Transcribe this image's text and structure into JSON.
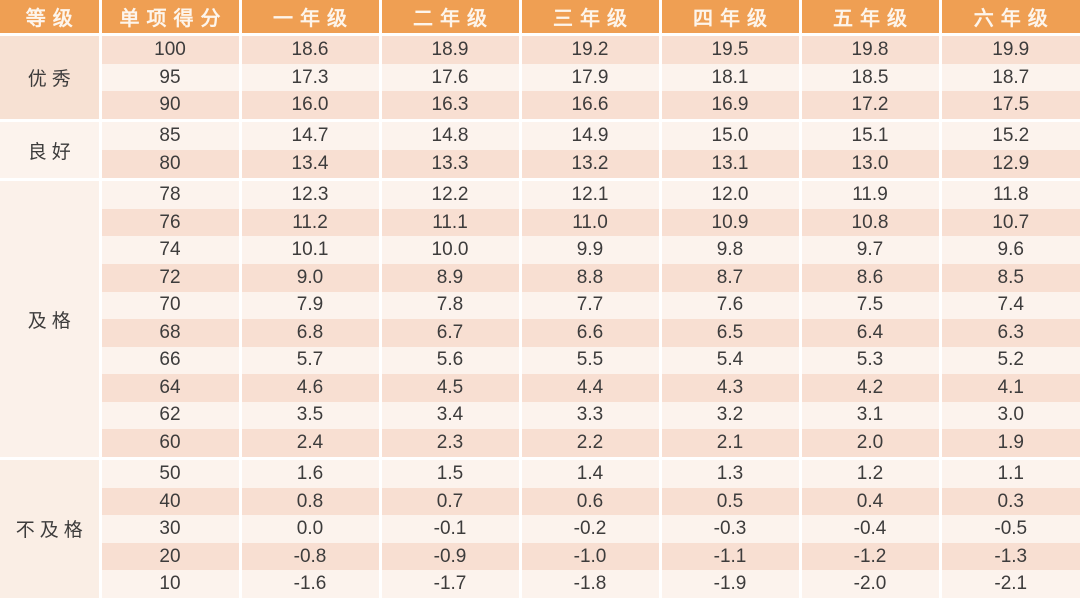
{
  "colors": {
    "header_bg": "#EF9F53",
    "header_text": "#FDF5EC",
    "row_pink": "#F8DFD2",
    "row_light": "#FCF3ED",
    "group0_bg": "#F7E1D3",
    "group1_bg": "#FCF3ED",
    "group2_bg": "#FBF1EA",
    "group3_bg": "#FAEEE5",
    "separator": "#FFFFFF",
    "text": "#3D3C3C"
  },
  "chart_data": {
    "type": "table",
    "columns": [
      "等级",
      "单项得分",
      "一年级",
      "二年级",
      "三年级",
      "四年级",
      "五年级",
      "六年级"
    ],
    "groups": [
      {
        "label": "优秀",
        "rows": [
          {
            "score": "100",
            "values": [
              "18.6",
              "18.9",
              "19.2",
              "19.5",
              "19.8",
              "19.9"
            ]
          },
          {
            "score": "95",
            "values": [
              "17.3",
              "17.6",
              "17.9",
              "18.1",
              "18.5",
              "18.7"
            ]
          },
          {
            "score": "90",
            "values": [
              "16.0",
              "16.3",
              "16.6",
              "16.9",
              "17.2",
              "17.5"
            ]
          }
        ]
      },
      {
        "label": "良好",
        "rows": [
          {
            "score": "85",
            "values": [
              "14.7",
              "14.8",
              "14.9",
              "15.0",
              "15.1",
              "15.2"
            ]
          },
          {
            "score": "80",
            "values": [
              "13.4",
              "13.3",
              "13.2",
              "13.1",
              "13.0",
              "12.9"
            ]
          }
        ]
      },
      {
        "label": "及格",
        "rows": [
          {
            "score": "78",
            "values": [
              "12.3",
              "12.2",
              "12.1",
              "12.0",
              "11.9",
              "11.8"
            ]
          },
          {
            "score": "76",
            "values": [
              "11.2",
              "11.1",
              "11.0",
              "10.9",
              "10.8",
              "10.7"
            ]
          },
          {
            "score": "74",
            "values": [
              "10.1",
              "10.0",
              "9.9",
              "9.8",
              "9.7",
              "9.6"
            ]
          },
          {
            "score": "72",
            "values": [
              "9.0",
              "8.9",
              "8.8",
              "8.7",
              "8.6",
              "8.5"
            ]
          },
          {
            "score": "70",
            "values": [
              "7.9",
              "7.8",
              "7.7",
              "7.6",
              "7.5",
              "7.4"
            ]
          },
          {
            "score": "68",
            "values": [
              "6.8",
              "6.7",
              "6.6",
              "6.5",
              "6.4",
              "6.3"
            ]
          },
          {
            "score": "66",
            "values": [
              "5.7",
              "5.6",
              "5.5",
              "5.4",
              "5.3",
              "5.2"
            ]
          },
          {
            "score": "64",
            "values": [
              "4.6",
              "4.5",
              "4.4",
              "4.3",
              "4.2",
              "4.1"
            ]
          },
          {
            "score": "62",
            "values": [
              "3.5",
              "3.4",
              "3.3",
              "3.2",
              "3.1",
              "3.0"
            ]
          },
          {
            "score": "60",
            "values": [
              "2.4",
              "2.3",
              "2.2",
              "2.1",
              "2.0",
              "1.9"
            ]
          }
        ]
      },
      {
        "label": "不及格",
        "rows": [
          {
            "score": "50",
            "values": [
              "1.6",
              "1.5",
              "1.4",
              "1.3",
              "1.2",
              "1.1"
            ]
          },
          {
            "score": "40",
            "values": [
              "0.8",
              "0.7",
              "0.6",
              "0.5",
              "0.4",
              "0.3"
            ]
          },
          {
            "score": "30",
            "values": [
              "0.0",
              "-0.1",
              "-0.2",
              "-0.3",
              "-0.4",
              "-0.5"
            ]
          },
          {
            "score": "20",
            "values": [
              "-0.8",
              "-0.9",
              "-1.0",
              "-1.1",
              "-1.2",
              "-1.3"
            ]
          },
          {
            "score": "10",
            "values": [
              "-1.6",
              "-1.7",
              "-1.8",
              "-1.9",
              "-2.0",
              "-2.1"
            ]
          }
        ]
      }
    ]
  }
}
